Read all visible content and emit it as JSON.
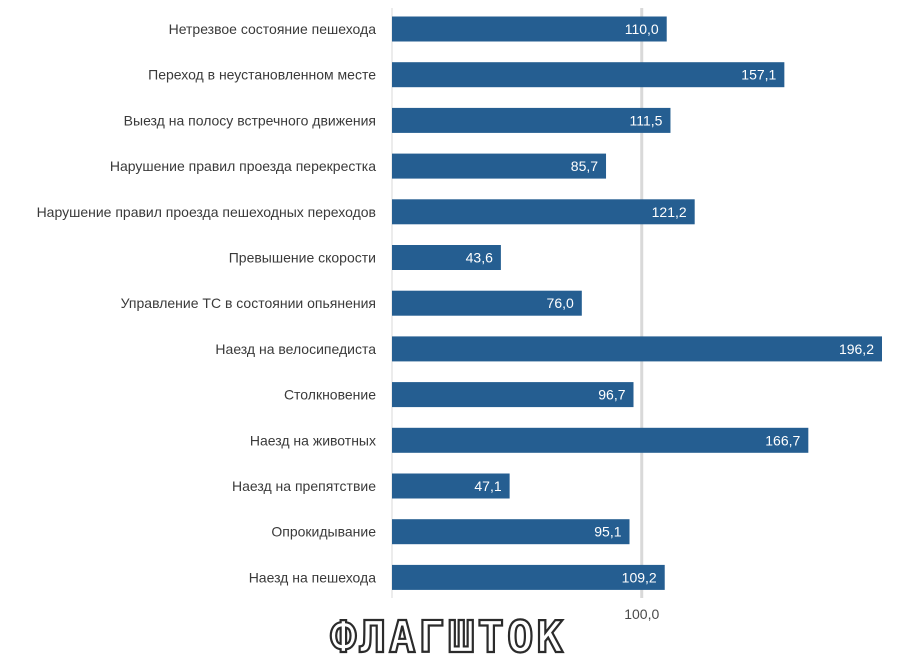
{
  "chart_data": {
    "type": "bar",
    "orientation": "horizontal",
    "categories": [
      "Нетрезвое состояние пешехода",
      "Переход в неустановленном месте",
      "Выезд на полосу встречного движения",
      "Нарушение правил проезда перекрестка",
      "Нарушение правил проезда пешеходных переходов",
      "Превышение скорости",
      "Управление ТС в состоянии опьянения",
      "Наезд на велосипедиста",
      "Столкновение",
      "Наезд на животных",
      "Наезд на препятствие",
      "Опрокидывание",
      "Наезд на пешехода"
    ],
    "values": [
      110.0,
      157.1,
      111.5,
      85.7,
      121.2,
      43.6,
      76.0,
      196.2,
      96.7,
      166.7,
      47.1,
      95.1,
      109.2
    ],
    "value_labels": [
      "110,0",
      "157,1",
      "111,5",
      "85,7",
      "121,2",
      "43,6",
      "76,0",
      "196,2",
      "96,7",
      "166,7",
      "47,1",
      "95,1",
      "109,2"
    ],
    "reference_line": {
      "value": 100.0,
      "label": "100,0"
    },
    "xlim": [
      0,
      196.2
    ],
    "grid": false,
    "bar_color": "#255e91",
    "reference_color": "#d9d9d9"
  },
  "watermark": "ФЛАГШТОК"
}
